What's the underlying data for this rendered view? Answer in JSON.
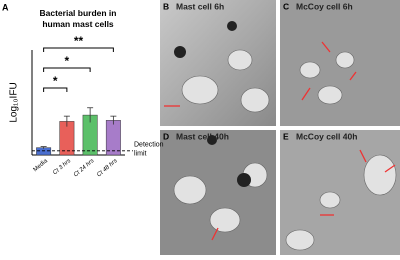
{
  "chart_data": {
    "type": "bar",
    "panel": "A",
    "title": "Bacterial burden in human mast cells",
    "ylabel": "Log₁₀IFU",
    "categories": [
      "Media",
      "Ct 3 hrs",
      "Ct 24 hrs",
      "Ct 48 hrs"
    ],
    "values": [
      0.7,
      3.2,
      3.8,
      3.3
    ],
    "errors": [
      0.1,
      0.5,
      0.7,
      0.4
    ],
    "colors": [
      "#4a6fd0",
      "#e8605a",
      "#5cc06a",
      "#a77cc9"
    ],
    "ylim": [
      0,
      10
    ],
    "detection_limit": {
      "value": 0.4,
      "label": [
        "Detection",
        "limit"
      ]
    },
    "significance": [
      "*",
      "*",
      "**"
    ]
  },
  "panels": [
    {
      "letter": "B",
      "caption": "Mast cell 6h"
    },
    {
      "letter": "C",
      "caption": "McCoy cell 6h"
    },
    {
      "letter": "D",
      "caption": "Mast cell 40h"
    },
    {
      "letter": "E",
      "caption": "McCoy cell 40h"
    }
  ]
}
